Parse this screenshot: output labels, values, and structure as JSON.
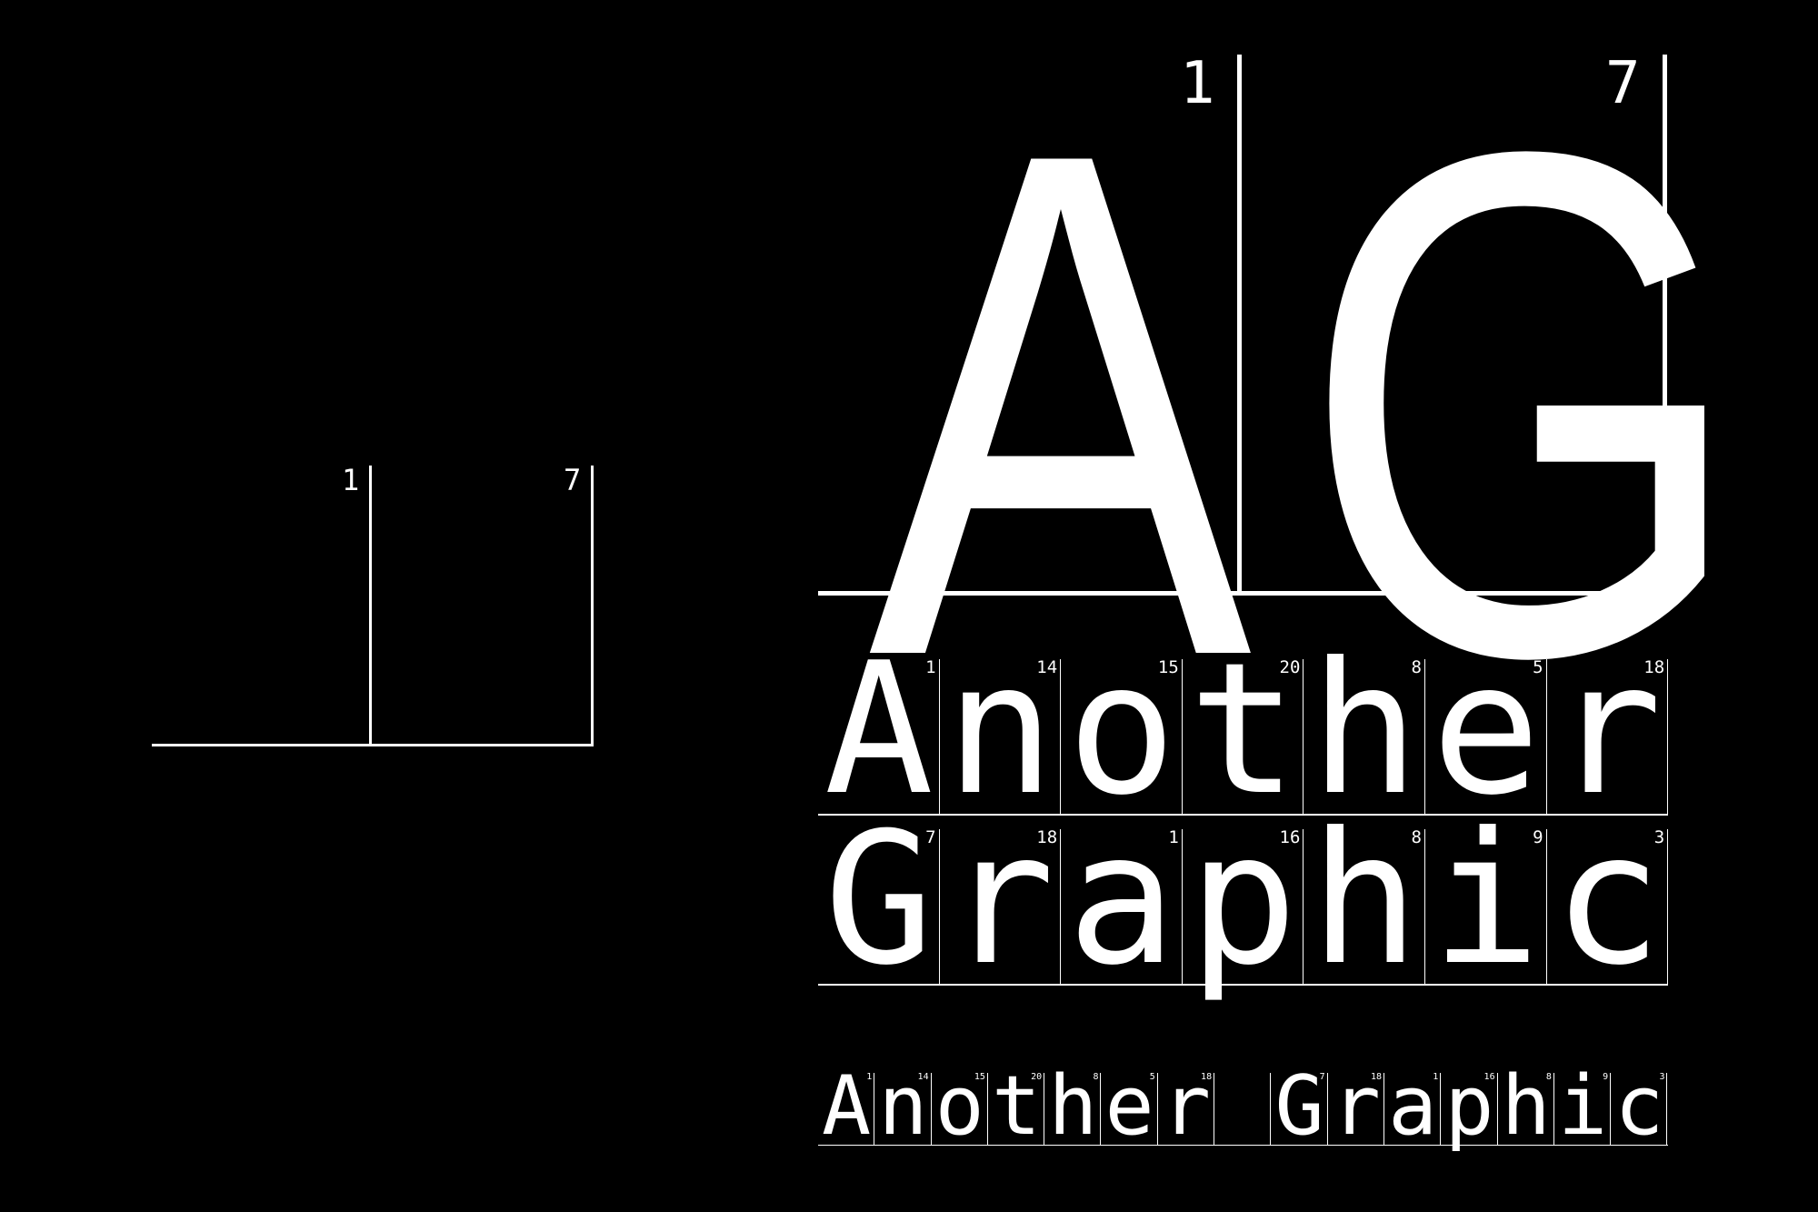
{
  "small_mark": {
    "index_1": "1",
    "index_2": "7"
  },
  "hero": {
    "letters": [
      {
        "char": "A",
        "index": "1"
      },
      {
        "char": "G",
        "index": "7"
      }
    ]
  },
  "word_rows": [
    {
      "word": "Another",
      "cells": [
        {
          "char": "A",
          "index": "1"
        },
        {
          "char": "n",
          "index": "14"
        },
        {
          "char": "o",
          "index": "15"
        },
        {
          "char": "t",
          "index": "20"
        },
        {
          "char": "h",
          "index": "8"
        },
        {
          "char": "e",
          "index": "5"
        },
        {
          "char": "r",
          "index": "18"
        }
      ]
    },
    {
      "word": "Graphic",
      "cells": [
        {
          "char": "G",
          "index": "7"
        },
        {
          "char": "r",
          "index": "18"
        },
        {
          "char": "a",
          "index": "1"
        },
        {
          "char": "p",
          "index": "16"
        },
        {
          "char": "h",
          "index": "8"
        },
        {
          "char": "i",
          "index": "9"
        },
        {
          "char": "c",
          "index": "3"
        }
      ]
    }
  ],
  "small_line": {
    "text": "Another Graphic",
    "cells": [
      {
        "char": "A",
        "index": "1"
      },
      {
        "char": "n",
        "index": "14"
      },
      {
        "char": "o",
        "index": "15"
      },
      {
        "char": "t",
        "index": "20"
      },
      {
        "char": "h",
        "index": "8"
      },
      {
        "char": "e",
        "index": "5"
      },
      {
        "char": "r",
        "index": "18"
      },
      {
        "char": " ",
        "index": ""
      },
      {
        "char": "G",
        "index": "7"
      },
      {
        "char": "r",
        "index": "18"
      },
      {
        "char": "a",
        "index": "1"
      },
      {
        "char": "p",
        "index": "16"
      },
      {
        "char": "h",
        "index": "8"
      },
      {
        "char": "i",
        "index": "9"
      },
      {
        "char": "c",
        "index": "3"
      }
    ]
  }
}
